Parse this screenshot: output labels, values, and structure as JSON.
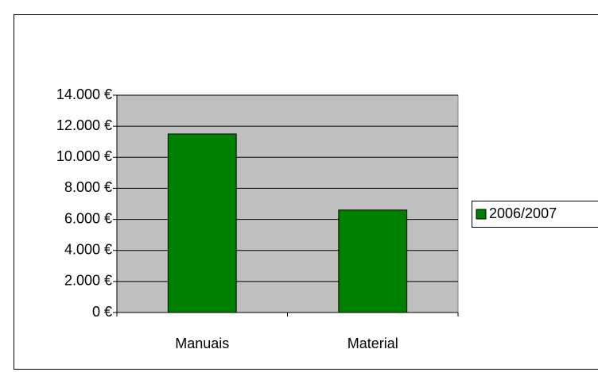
{
  "chart_data": {
    "type": "bar",
    "categories": [
      "Manuais",
      "Material"
    ],
    "series": [
      {
        "name": "2006/2007",
        "color": "#008000",
        "values": [
          11500,
          6600
        ]
      }
    ],
    "ylim": [
      0,
      14000
    ],
    "yticks": [
      {
        "value": 0,
        "label": "0 €"
      },
      {
        "value": 2000,
        "label": "2.000 €"
      },
      {
        "value": 4000,
        "label": "4.000 €"
      },
      {
        "value": 6000,
        "label": "6.000 €"
      },
      {
        "value": 8000,
        "label": "8.000 €"
      },
      {
        "value": 10000,
        "label": "10.000 €"
      },
      {
        "value": 12000,
        "label": "12.000 €"
      },
      {
        "value": 14000,
        "label": "14.000 €"
      }
    ],
    "grid": true,
    "legend": "right"
  }
}
